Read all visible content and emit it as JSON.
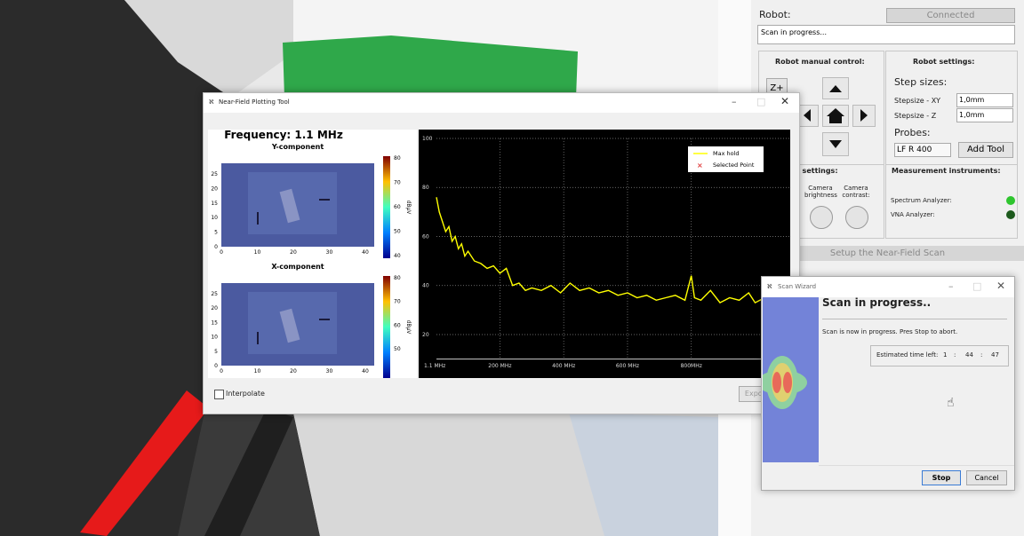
{
  "robot_panel": {
    "robot_label": "Robot:",
    "status": "Connected",
    "log": "Scan in progress...",
    "manual_control_title": "Robot manual control:",
    "settings_title": "Robot settings:",
    "z_button": "Z+",
    "step_sizes": "Step sizes:",
    "stepsize_xy_label": "Stepsize - XY",
    "stepsize_xy": "1,0mm",
    "stepsize_z_label": "Stepsize - Z",
    "stepsize_z": "1,0mm",
    "probes_label": "Probes:",
    "probe": "LF R 400",
    "add_tool": "Add Tool",
    "camera_settings_title": "era settings:",
    "camera_brightness": "Camera brightness",
    "camera_contrast": "Camera contrast:",
    "instruments_title": "Measurement instruments:",
    "spectrum_analyzer": "Spectrum Analyzer:",
    "vna_analyzer": "VNA Analyzer:",
    "setup_button": "Setup the Near-Field Scan"
  },
  "plot_window": {
    "title": "Near-Field Plotting Tool",
    "frequency": "Frequency: 1.1 MHz",
    "heatmaps": [
      {
        "title": "Y-component",
        "xticks": [
          0,
          10,
          20,
          30,
          40
        ],
        "yticks": [
          0,
          5,
          10,
          15,
          20,
          25
        ],
        "colorbar_ticks": [
          40,
          50,
          60,
          70,
          80
        ],
        "colorbar_label": "dBµV"
      },
      {
        "title": "X-component",
        "xticks": [
          0,
          10,
          20,
          30,
          40
        ],
        "yticks": [
          0,
          5,
          10,
          15,
          20,
          25
        ],
        "colorbar_ticks": [
          50,
          60,
          70,
          80
        ],
        "colorbar_label": "dBµV"
      }
    ],
    "spectrum": {
      "type": "line",
      "xlim": [
        1.1,
        1110
      ],
      "ylim": [
        10,
        100
      ],
      "yticks": [
        20,
        40,
        60,
        80,
        100
      ],
      "xticks": [
        {
          "value": 1.1,
          "label": "1.1 MHz"
        },
        {
          "value": 200,
          "label": "200 MHz"
        },
        {
          "value": 400,
          "label": "400 MHz"
        },
        {
          "value": 600,
          "label": "600 MHz"
        },
        {
          "value": 800,
          "label": "800MHz"
        }
      ],
      "grid": true,
      "x": [
        1.1,
        10,
        20,
        30,
        40,
        50,
        60,
        70,
        80,
        90,
        100,
        120,
        140,
        160,
        180,
        200,
        220,
        240,
        260,
        280,
        300,
        330,
        360,
        390,
        420,
        450,
        480,
        510,
        540,
        570,
        600,
        630,
        660,
        690,
        720,
        750,
        780,
        800,
        810,
        830,
        860,
        890,
        920,
        950,
        980,
        1000,
        1030,
        1060,
        1100
      ],
      "series": [
        {
          "name": "Max hold",
          "color": "#ffff00",
          "values": [
            76,
            70,
            66,
            62,
            64,
            58,
            60,
            55,
            57,
            52,
            54,
            50,
            49,
            47,
            48,
            45,
            47,
            40,
            41,
            38,
            39,
            38,
            40,
            37,
            41,
            38,
            39,
            37,
            38,
            36,
            37,
            35,
            36,
            34,
            35,
            36,
            34,
            44,
            35,
            34,
            38,
            33,
            35,
            34,
            37,
            33,
            35,
            32,
            33
          ]
        }
      ],
      "selected_point": {
        "name": "Selected Point",
        "color": "#e03a3a"
      }
    },
    "interpolate": "Interpolate",
    "export": "Export"
  },
  "scan_wizard": {
    "title": "Scan Wizard",
    "heading": "Scan in progress..",
    "message": "Scan is now in progress. Pres Stop to abort.",
    "time_label": "Estimated time left:",
    "hours": "1",
    "separator": ":",
    "minutes": "44",
    "seconds": "47",
    "stop": "Stop",
    "cancel": "Cancel"
  }
}
